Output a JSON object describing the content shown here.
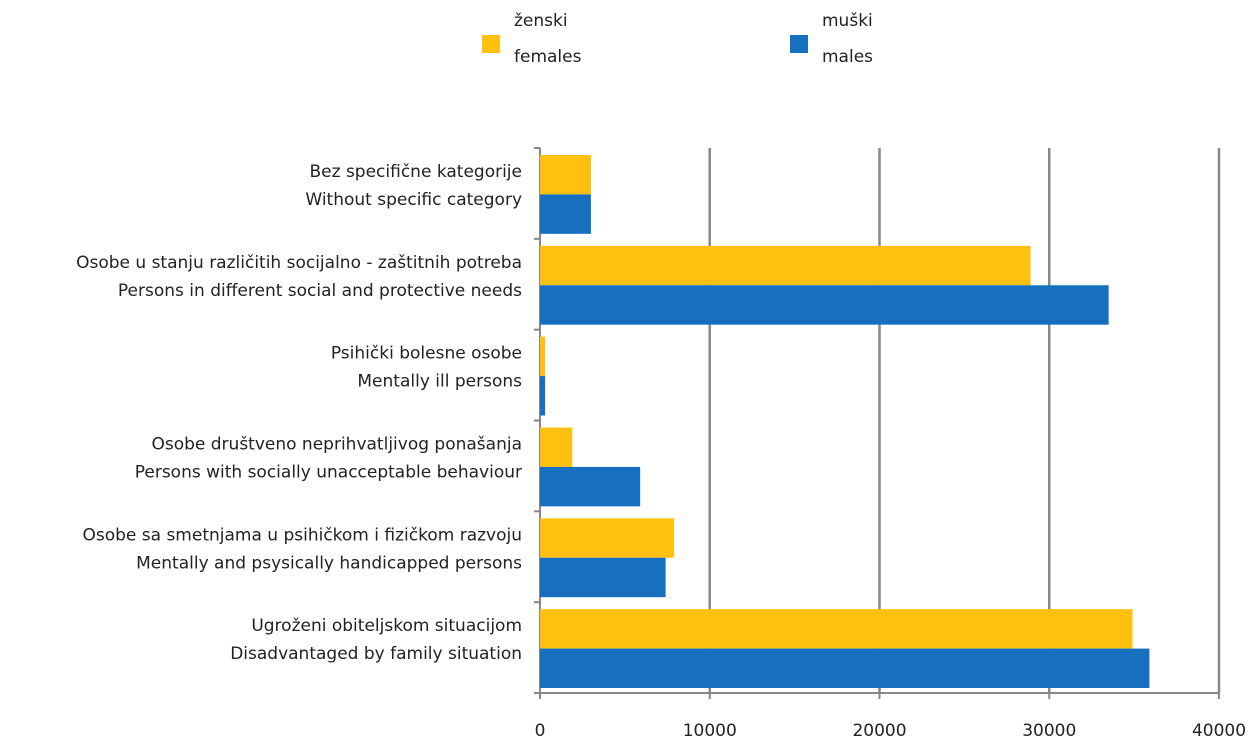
{
  "chart_data": {
    "type": "barh",
    "categories": [
      [
        "Bez specifične kategorije",
        "Without specific category"
      ],
      [
        "Osobe u stanju različitih socijalno - zaštitnih potreba",
        "Persons in different social and protective needs"
      ],
      [
        "Psihički bolesne osobe",
        "Mentally ill persons"
      ],
      [
        "Osobe društveno neprihvatljivog ponašanja",
        "Persons with socially unacceptable behaviour"
      ],
      [
        "Osobe sa smetnjama u psihičkom i fizičkom razvoju",
        "Mentally and psysically handicapped persons"
      ],
      [
        "Ugroženi obiteljskom situacijom",
        "Disadvantaged by family situation"
      ]
    ],
    "series": [
      {
        "name": [
          "ženski",
          "females"
        ],
        "color": "#ffc010",
        "values": [
          3000,
          28900,
          300,
          1900,
          7900,
          34900
        ]
      },
      {
        "name": [
          "muški",
          "males"
        ],
        "color": "#1670bf",
        "values": [
          3000,
          33500,
          300,
          5900,
          7400,
          35900
        ]
      }
    ],
    "xlim": [
      0,
      40000
    ],
    "xticks": [
      0,
      10000,
      20000,
      30000,
      40000
    ],
    "grid": true,
    "legend": "top"
  }
}
